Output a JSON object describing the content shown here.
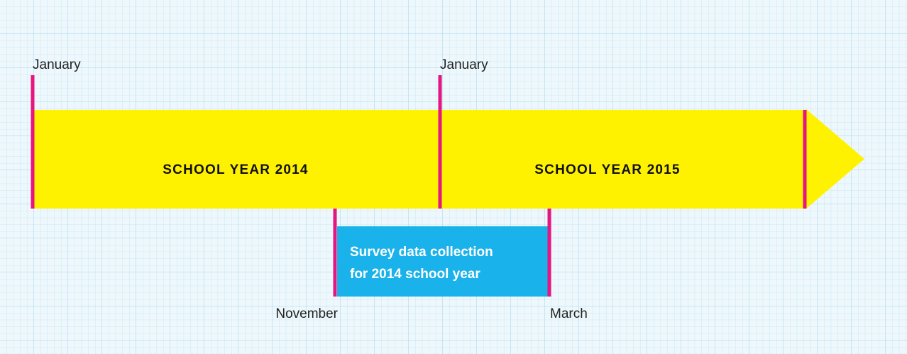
{
  "periods": [
    {
      "label": "SCHOOL YEAR 2014"
    },
    {
      "label": "SCHOOL YEAR 2015"
    }
  ],
  "top_markers": [
    {
      "label": "January"
    },
    {
      "label": "January"
    }
  ],
  "survey": {
    "lines": [
      "Survey data collection",
      "for 2014 school year"
    ],
    "start": "November",
    "end": "March"
  }
}
